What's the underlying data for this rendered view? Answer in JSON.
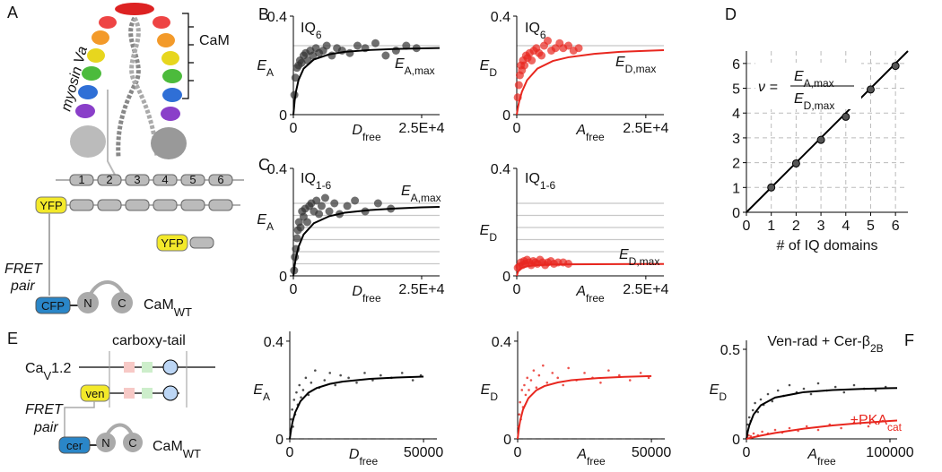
{
  "figure": {
    "panels": [
      "A",
      "B",
      "C",
      "D",
      "E",
      "F"
    ],
    "a": {
      "protein": "myosin Va",
      "cam": "CaM",
      "iq_numbers": [
        "1",
        "2",
        "3",
        "4",
        "5",
        "6"
      ],
      "yfp": "YFP",
      "yfp2": "YFP",
      "fret": "FRET",
      "pair": "pair",
      "cfp": "CFP",
      "n": "N",
      "c": "C",
      "camwt": "CaM",
      "camwt_sub": "WT"
    },
    "e": {
      "tail": "carboxy-tail",
      "cav": "Ca",
      "cav_sub": "V",
      "cav_rest": "1.2",
      "ven": "ven",
      "fret": "FRET",
      "pair": "pair",
      "cer": "cer",
      "n": "N",
      "c": "C",
      "camwt": "CaM",
      "camwt_sub": "WT"
    }
  },
  "chart_data": [
    {
      "type": "scatter",
      "title": "IQ",
      "title_sub": "6",
      "xlabel": "D",
      "xlabel_sub": "free",
      "ylabel": "E",
      "ylabel_sub": "A",
      "annotation": "E",
      "annotation_sub": "A,max",
      "xlim": [
        0,
        28500
      ],
      "xticks": [
        0,
        {
          "value": 25000,
          "label": "2.5E+4"
        }
      ],
      "ylim": [
        0,
        0.4
      ],
      "yticks": [
        0,
        0.4
      ],
      "ref_lines": [
        0.28
      ],
      "points": {
        "color": "#333333",
        "x": [
          200,
          400,
          700,
          1000,
          1300,
          1600,
          2000,
          2400,
          2800,
          3300,
          3800,
          4400,
          5000,
          5800,
          6500,
          7500,
          8500,
          9500,
          11000,
          12500,
          14000,
          16000,
          18000,
          20000,
          22000,
          24000
        ],
        "values": [
          0.08,
          0.15,
          0.19,
          0.2,
          0.22,
          0.21,
          0.24,
          0.25,
          0.22,
          0.26,
          0.24,
          0.27,
          0.25,
          0.26,
          0.28,
          0.24,
          0.27,
          0.26,
          0.25,
          0.28,
          0.27,
          0.29,
          0.24,
          0.26,
          0.28,
          0.27
        ]
      },
      "fit": {
        "color": "#000000",
        "x": [
          0,
          250,
          500,
          1000,
          2000,
          4000,
          7000,
          10000,
          15000,
          20000,
          25000,
          28500
        ],
        "values": [
          0,
          0.056,
          0.093,
          0.14,
          0.187,
          0.224,
          0.245,
          0.255,
          0.2625,
          0.267,
          0.269,
          0.2705
        ]
      }
    },
    {
      "type": "scatter",
      "title": "IQ",
      "title_sub": "6",
      "xlabel": "A",
      "xlabel_sub": "free",
      "ylabel": "E",
      "ylabel_sub": "D",
      "annotation": "E",
      "annotation_sub": "D,max",
      "xlim": [
        0,
        28500
      ],
      "xticks": [
        0,
        {
          "value": 25000,
          "label": "2.5E+4"
        }
      ],
      "ylim": [
        0,
        0.4
      ],
      "yticks": [
        0,
        0.4
      ],
      "ref_lines": [
        0.28
      ],
      "points": {
        "color": "#e8271f",
        "x": [
          200,
          400,
          600,
          800,
          1000,
          1200,
          1500,
          1800,
          2100,
          2500,
          2900,
          3300,
          3800,
          4300,
          4800,
          5300,
          6000,
          6700,
          7500,
          8300,
          9000,
          10000,
          11000,
          12000
        ],
        "values": [
          0.07,
          0.12,
          0.16,
          0.2,
          0.18,
          0.22,
          0.2,
          0.24,
          0.23,
          0.25,
          0.22,
          0.26,
          0.27,
          0.25,
          0.24,
          0.28,
          0.3,
          0.26,
          0.27,
          0.29,
          0.27,
          0.28,
          0.26,
          0.27
        ]
      },
      "fit": {
        "color": "#e8271f",
        "x": [
          0,
          250,
          500,
          1000,
          2000,
          4000,
          7000,
          10000,
          15000,
          20000,
          25000,
          28500
        ],
        "values": [
          0,
          0.031,
          0.056,
          0.093,
          0.14,
          0.187,
          0.218,
          0.233,
          0.247,
          0.255,
          0.259,
          0.262
        ]
      }
    },
    {
      "type": "scatter",
      "title": "IQ",
      "title_sub": "1-6",
      "xlabel": "D",
      "xlabel_sub": "free",
      "ylabel": "E",
      "ylabel_sub": "A",
      "annotation": "E",
      "annotation_sub": "A,max",
      "xlim": [
        0,
        28500
      ],
      "xticks": [
        0,
        {
          "value": 25000,
          "label": "2.5E+4"
        }
      ],
      "ylim": [
        0,
        0.4
      ],
      "yticks": [
        0,
        0.4
      ],
      "ref_lines": [
        0.045,
        0.09,
        0.135,
        0.18,
        0.225,
        0.27
      ],
      "points": {
        "color": "#333333",
        "x": [
          150,
          300,
          500,
          700,
          900,
          1100,
          1400,
          1700,
          2000,
          2300,
          2700,
          3100,
          3500,
          4000,
          4500,
          5000,
          5500,
          6200,
          7000,
          8000,
          9000,
          10500,
          12000,
          14000,
          16500,
          19000
        ],
        "values": [
          0.02,
          0.07,
          0.1,
          0.14,
          0.17,
          0.2,
          0.18,
          0.24,
          0.22,
          0.25,
          0.2,
          0.26,
          0.27,
          0.24,
          0.28,
          0.23,
          0.26,
          0.29,
          0.24,
          0.27,
          0.23,
          0.26,
          0.28,
          0.24,
          0.27,
          0.25
        ]
      },
      "fit": {
        "color": "#000000",
        "x": [
          0,
          250,
          500,
          1000,
          2000,
          4000,
          7000,
          10000,
          15000,
          20000,
          25000,
          28500
        ],
        "values": [
          0,
          0.0386,
          0.0675,
          0.108,
          0.154,
          0.196,
          0.222,
          0.235,
          0.245,
          0.251,
          0.255,
          0.2565
        ]
      }
    },
    {
      "type": "scatter",
      "title": "IQ",
      "title_sub": "1-6",
      "xlabel": "A",
      "xlabel_sub": "free",
      "ylabel": "E",
      "ylabel_sub": "D",
      "annotation": "E",
      "annotation_sub": "D,max",
      "xlim": [
        0,
        28500
      ],
      "xticks": [
        0,
        {
          "value": 25000,
          "label": "2.5E+4"
        }
      ],
      "ylim": [
        0,
        0.4
      ],
      "yticks": [
        0,
        0.4
      ],
      "ref_lines": [
        0.045,
        0.09,
        0.135,
        0.18,
        0.225,
        0.27
      ],
      "points": {
        "color": "#e8271f",
        "x": [
          200,
          500,
          800,
          1100,
          1400,
          1700,
          2000,
          2400,
          2800,
          3200,
          3600,
          4000,
          4500,
          5000,
          5500,
          6000,
          6600,
          7200,
          8000,
          9000,
          10000
        ],
        "values": [
          0.03,
          0.035,
          0.05,
          0.04,
          0.055,
          0.045,
          0.06,
          0.05,
          0.04,
          0.055,
          0.05,
          0.045,
          0.06,
          0.05,
          0.04,
          0.05,
          0.055,
          0.045,
          0.05,
          0.05,
          0.045
        ]
      },
      "fit": {
        "color": "#e8271f",
        "x": [
          0,
          250,
          500,
          1000,
          2000,
          4000,
          7000,
          10000,
          15000,
          20000,
          25000,
          28500
        ],
        "values": [
          0,
          0.015,
          0.0225,
          0.03,
          0.036,
          0.04,
          0.042,
          0.0429,
          0.0435,
          0.0439,
          0.0441,
          0.0442
        ]
      }
    },
    {
      "type": "scatter",
      "xlabel": "# of IQ domains",
      "grid": true,
      "grid_style": "dashed",
      "formula_lhs": "ν =",
      "formula_num": "E",
      "formula_num_sub": "A,max",
      "formula_den": "E",
      "formula_den_sub": "D,max",
      "xlim": [
        0,
        6.5
      ],
      "xticks": [
        0,
        1,
        2,
        3,
        4,
        5,
        6
      ],
      "ylim": [
        0,
        6.5
      ],
      "yticks": [
        0,
        1,
        2,
        3,
        4,
        5,
        6
      ],
      "points": {
        "color": "#555555",
        "x": [
          1,
          2,
          3,
          4,
          5,
          6
        ],
        "values": [
          1,
          1.97,
          2.92,
          3.85,
          4.95,
          5.9
        ],
        "errors": [
          0.08,
          0.08,
          0.08,
          0.08,
          0.08,
          0.1
        ]
      },
      "fit": {
        "color": "#000000",
        "x": [
          0,
          6.5
        ],
        "values": [
          0,
          6.5
        ]
      }
    },
    {
      "type": "scatter",
      "xlabel": "D",
      "xlabel_sub": "free",
      "ylabel": "E",
      "ylabel_sub": "A",
      "xlim": [
        0,
        55000
      ],
      "xticks": [
        0,
        50000
      ],
      "ylim": [
        0,
        0.44
      ],
      "yticks": [
        0,
        0.4
      ],
      "ref_lines": [
        0
      ],
      "ref_style": "dashed",
      "points": {
        "color": "#222222",
        "x": [
          300,
          600,
          900,
          1200,
          1600,
          2000,
          2500,
          3000,
          3600,
          4200,
          5000,
          6000,
          7000,
          8000,
          9500,
          11000,
          13000,
          15000,
          17000,
          19000,
          22000,
          25000,
          28000,
          31000,
          34000,
          38000,
          42000,
          46000,
          49000
        ],
        "values": [
          0.03,
          0.08,
          0.12,
          0.05,
          0.16,
          0.1,
          0.19,
          0.14,
          0.22,
          0.17,
          0.2,
          0.25,
          0.18,
          0.23,
          0.28,
          0.21,
          0.24,
          0.27,
          0.22,
          0.26,
          0.25,
          0.23,
          0.27,
          0.24,
          0.26,
          0.25,
          0.27,
          0.24,
          0.26
        ]
      },
      "fit": {
        "color": "#000000",
        "x": [
          0,
          500,
          1000,
          2000,
          4000,
          7000,
          10000,
          15000,
          20000,
          30000,
          40000,
          50000
        ],
        "values": [
          0,
          0.0386,
          0.0675,
          0.108,
          0.154,
          0.189,
          0.2077,
          0.225,
          0.2348,
          0.2455,
          0.2512,
          0.2547
        ]
      }
    },
    {
      "type": "scatter",
      "xlabel": "A",
      "xlabel_sub": "free",
      "ylabel": "E",
      "ylabel_sub": "D",
      "xlim": [
        0,
        55000
      ],
      "xticks": [
        0,
        50000
      ],
      "ylim": [
        0,
        0.44
      ],
      "yticks": [
        0,
        0.4
      ],
      "ref_lines": [
        0
      ],
      "ref_style": "dashed",
      "points": {
        "color": "#e8271f",
        "x": [
          300,
          600,
          900,
          1200,
          1600,
          2000,
          2500,
          3000,
          3600,
          4200,
          5000,
          6000,
          7000,
          8000,
          9500,
          11000,
          13000,
          15000,
          17000,
          19000,
          22000,
          25000,
          28000,
          31000,
          34000,
          38000,
          42000,
          46000,
          49000
        ],
        "values": [
          0.05,
          0.1,
          0.15,
          0.08,
          0.2,
          0.13,
          0.22,
          0.18,
          0.25,
          0.2,
          0.24,
          0.28,
          0.21,
          0.26,
          0.3,
          0.23,
          0.27,
          0.25,
          0.22,
          0.29,
          0.24,
          0.27,
          0.25,
          0.23,
          0.28,
          0.26,
          0.24,
          0.27,
          0.25
        ]
      },
      "fit": {
        "color": "#e8271f",
        "x": [
          0,
          500,
          1000,
          2000,
          4000,
          7000,
          10000,
          15000,
          20000,
          30000,
          40000,
          50000
        ],
        "values": [
          0,
          0.045,
          0.0771,
          0.12,
          0.166,
          0.199,
          0.216,
          0.231,
          0.24,
          0.249,
          0.254,
          0.257
        ]
      }
    },
    {
      "type": "scatter",
      "title": "Ven-rad + Cer-β",
      "title_sub": "2B",
      "xlabel": "A",
      "xlabel_sub": "free",
      "ylabel": "E",
      "ylabel_sub": "D",
      "annotation": "+PKA",
      "annotation_sub": "cat",
      "annotation_color": "#e8271f",
      "xlim": [
        0,
        105000
      ],
      "xticks": [
        0,
        100000
      ],
      "ylim": [
        0,
        0.55
      ],
      "yticks": [
        0,
        0.5
      ],
      "points": {
        "color": "#222222",
        "x": [
          500,
          1000,
          2000,
          3000,
          4500,
          6000,
          8000,
          10000,
          12000,
          15000,
          18000,
          22000,
          26000,
          30000,
          35000,
          40000,
          45000,
          50000,
          56000,
          62000,
          68000,
          75000,
          82000,
          90000,
          97000
        ],
        "values": [
          0.04,
          0.08,
          0.12,
          0.1,
          0.16,
          0.2,
          0.15,
          0.22,
          0.19,
          0.25,
          0.21,
          0.27,
          0.24,
          0.3,
          0.26,
          0.28,
          0.25,
          0.31,
          0.27,
          0.29,
          0.26,
          0.3,
          0.28,
          0.27,
          0.29
        ]
      },
      "fit": {
        "color": "#000000",
        "x": [
          0,
          1000,
          2000,
          5000,
          10000,
          20000,
          40000,
          60000,
          80000,
          100000,
          105000
        ],
        "values": [
          0,
          0.0429,
          0.075,
          0.136,
          0.1875,
          0.2308,
          0.2609,
          0.2727,
          0.279,
          0.283,
          0.2838
        ]
      },
      "points2": {
        "color": "#e8271f",
        "x": [
          500,
          1500,
          3000,
          5000,
          8000,
          11000,
          15000,
          20000,
          25000,
          30000,
          36000,
          42000,
          50000,
          58000,
          66000,
          75000,
          85000,
          95000
        ],
        "values": [
          0.01,
          0.02,
          0.015,
          0.03,
          0.02,
          0.04,
          0.03,
          0.05,
          0.035,
          0.06,
          0.045,
          0.07,
          0.05,
          0.08,
          0.06,
          0.09,
          0.07,
          0.1
        ]
      },
      "fit2": {
        "color": "#e8271f",
        "x": [
          0,
          10000,
          20000,
          40000,
          60000,
          80000,
          100000,
          105000
        ],
        "values": [
          0,
          0.0182,
          0.0333,
          0.0571,
          0.075,
          0.0889,
          0.1,
          0.1024
        ]
      }
    }
  ]
}
